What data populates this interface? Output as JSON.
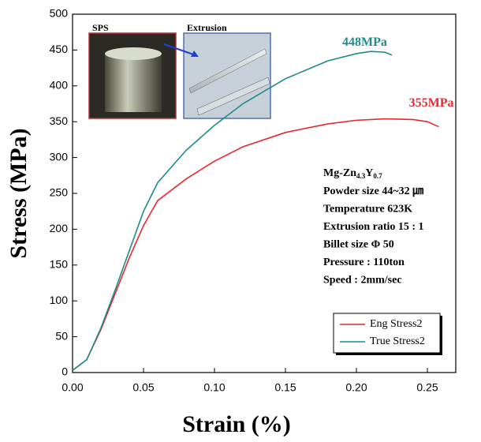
{
  "chart_data": {
    "type": "line",
    "xlabel": "Strain (%)",
    "ylabel": "Stress (MPa)",
    "xlim": [
      0,
      0.27
    ],
    "ylim": [
      0,
      500
    ],
    "xticks": [
      {
        "value": 0,
        "label": "0.00"
      },
      0.05,
      {
        "value": 0.1,
        "label": "0.10"
      },
      0.15,
      {
        "value": 0.2,
        "label": "0.20"
      },
      0.25
    ],
    "yticks": [
      0,
      50,
      100,
      150,
      200,
      250,
      300,
      350,
      400,
      450,
      500
    ],
    "legend_position": "lower right",
    "series": [
      {
        "name": "Eng Stress2",
        "color": "#e8282e",
        "x": [
          0,
          0.01,
          0.02,
          0.03,
          0.04,
          0.05,
          0.06,
          0.08,
          0.1,
          0.12,
          0.15,
          0.18,
          0.2,
          0.22,
          0.24,
          0.25,
          0.258
        ],
        "values": [
          3,
          18,
          60,
          110,
          160,
          205,
          240,
          270,
          295,
          315,
          335,
          347,
          352,
          354,
          353,
          350,
          343
        ]
      },
      {
        "name": "True Stress2",
        "color": "#1f8a8a",
        "x": [
          0,
          0.01,
          0.02,
          0.03,
          0.04,
          0.05,
          0.06,
          0.08,
          0.1,
          0.12,
          0.15,
          0.18,
          0.2,
          0.21,
          0.22,
          0.225
        ],
        "values": [
          3,
          18,
          62,
          115,
          170,
          225,
          265,
          310,
          345,
          375,
          410,
          435,
          445,
          448,
          447,
          443
        ]
      }
    ],
    "annotations": [
      {
        "text": "448MPa",
        "x": 0.19,
        "y": 460,
        "color": "#1f8a8a"
      },
      {
        "text": "355MPa",
        "x": 0.237,
        "y": 375,
        "color": "#e8282e"
      }
    ],
    "info": {
      "alloy": [
        "Mg-Zn",
        "4.3",
        "Y",
        "0.7"
      ],
      "lines": [
        "Powder size 44~32 ㎛",
        "Temperature 623K",
        "Extrusion ratio  15 : 1",
        "Billet size Φ 50",
        "Pressure : 110ton",
        "Speed : 2mm/sec"
      ]
    },
    "photos": [
      "SPS",
      "Extrusion"
    ]
  }
}
